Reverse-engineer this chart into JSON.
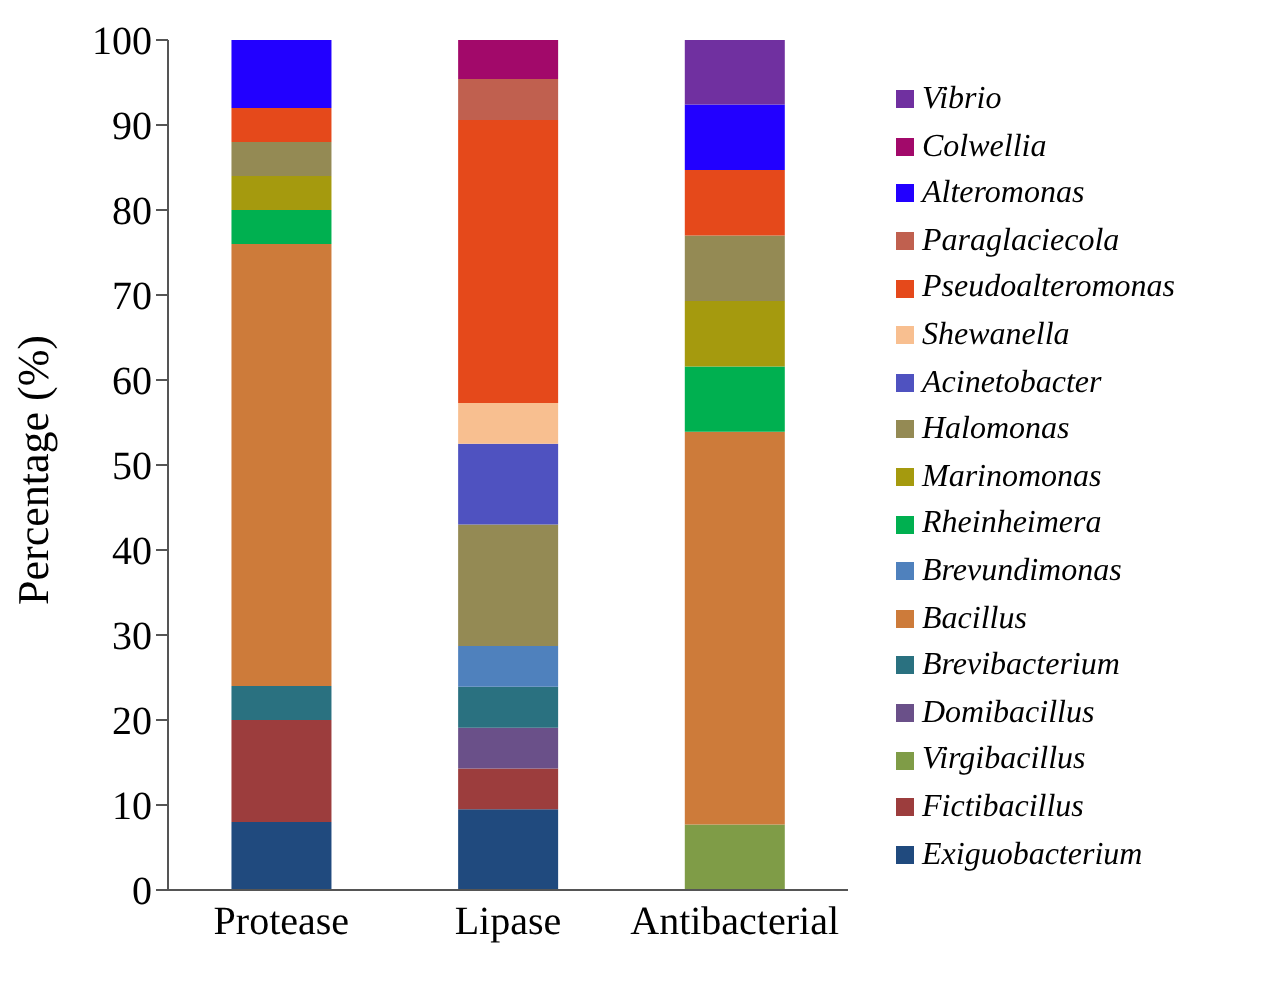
{
  "chart_data": {
    "type": "bar",
    "stacked": true,
    "ylabel": "Percentage (%)",
    "categories": [
      "Protease",
      "Lipase",
      "Antibacterial"
    ],
    "ylim": [
      0,
      100
    ],
    "yticks": [
      0,
      10,
      20,
      30,
      40,
      50,
      60,
      70,
      80,
      90,
      100
    ],
    "grid": false,
    "legend": "right",
    "series": [
      {
        "name": "Exiguobacterium",
        "color": "#204a7e",
        "values": [
          8,
          9.5,
          null
        ]
      },
      {
        "name": "Fictibacillus",
        "color": "#9c3d3d",
        "values": [
          12,
          4.8,
          null
        ]
      },
      {
        "name": "Virgibacillus",
        "color": "#7f9c47",
        "values": [
          null,
          null,
          7.7
        ]
      },
      {
        "name": "Domibacillus",
        "color": "#6a5089",
        "values": [
          null,
          4.8,
          null
        ]
      },
      {
        "name": "Brevibacterium",
        "color": "#2a7180",
        "values": [
          4,
          4.8,
          null
        ]
      },
      {
        "name": "Bacillus",
        "color": "#cd7b3a",
        "values": [
          52,
          null,
          46.2
        ]
      },
      {
        "name": "Brevundimonas",
        "color": "#4f81bd",
        "values": [
          null,
          4.8,
          null
        ]
      },
      {
        "name": "Rheinheimera",
        "color": "#00b050",
        "values": [
          4,
          null,
          7.7
        ]
      },
      {
        "name": "Marinomonas",
        "color": "#a59a0e",
        "values": [
          4,
          null,
          7.7
        ]
      },
      {
        "name": "Halomonas",
        "color": "#948a54",
        "values": [
          4,
          14.3,
          7.7
        ]
      },
      {
        "name": "Acinetobacter",
        "color": "#4f52c0",
        "values": [
          null,
          9.5,
          null
        ]
      },
      {
        "name": "Shewanella",
        "color": "#f8bf90",
        "values": [
          null,
          4.8,
          null
        ]
      },
      {
        "name": "Pseudoalteromonas",
        "color": "#e5491b",
        "values": [
          4,
          33.3,
          7.7
        ]
      },
      {
        "name": "Paraglaciecola",
        "color": "#c0604f",
        "values": [
          null,
          4.8,
          null
        ]
      },
      {
        "name": "Alteromonas",
        "color": "#2200ff",
        "values": [
          8,
          null,
          7.7
        ]
      },
      {
        "name": "Colwellia",
        "color": "#a2096a",
        "values": [
          null,
          4.8,
          null
        ]
      },
      {
        "name": "Vibrio",
        "color": "#7030a0",
        "values": [
          null,
          null,
          7.7
        ]
      }
    ]
  }
}
